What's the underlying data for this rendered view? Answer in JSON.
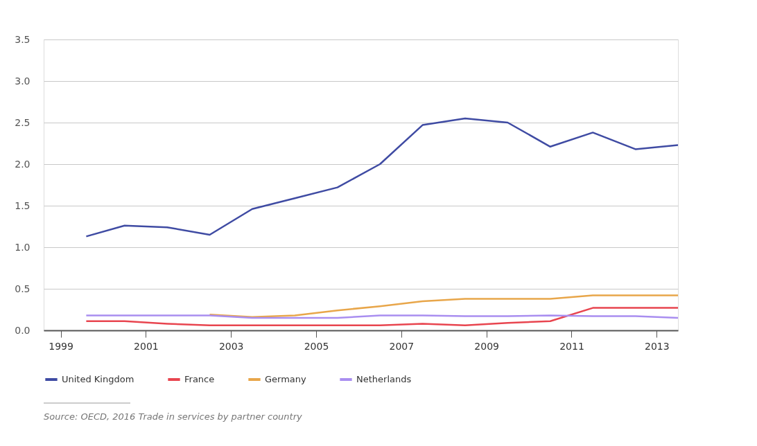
{
  "chart_data": {
    "type": "line",
    "x": [
      1999.6,
      2000.5,
      2001.5,
      2002.5,
      2003.5,
      2004.5,
      2005.5,
      2006.5,
      2007.5,
      2008.5,
      2009.5,
      2010.5,
      2011.5,
      2012.5,
      2013.5
    ],
    "series": [
      {
        "name": "United Kingdom",
        "color": "#3f4ba3",
        "values": [
          1.13,
          1.26,
          1.24,
          1.15,
          1.46,
          1.59,
          1.72,
          2.0,
          2.47,
          2.55,
          2.5,
          2.21,
          2.38,
          2.18,
          2.23
        ]
      },
      {
        "name": "France",
        "color": "#e8454f",
        "values": [
          0.11,
          0.11,
          0.08,
          0.06,
          0.06,
          0.06,
          0.06,
          0.06,
          0.08,
          0.06,
          0.09,
          0.11,
          0.27,
          0.27,
          0.27
        ]
      },
      {
        "name": "Germany",
        "color": "#e8a64a",
        "values": [
          null,
          null,
          null,
          0.19,
          0.16,
          0.18,
          0.24,
          0.29,
          0.35,
          0.38,
          0.38,
          0.38,
          0.42,
          0.42,
          0.42
        ]
      },
      {
        "name": "Netherlands",
        "color": "#a98ef0",
        "values": [
          0.18,
          0.18,
          0.18,
          0.18,
          0.15,
          0.15,
          0.15,
          0.18,
          0.18,
          0.17,
          0.17,
          0.18,
          0.17,
          0.17,
          0.15
        ]
      }
    ],
    "xlim": [
      1998.6,
      2013.5
    ],
    "xticks": [
      1999,
      2001,
      2003,
      2005,
      2007,
      2009,
      2011,
      2013
    ],
    "ylim": [
      0,
      3.5
    ],
    "yticks": [
      {
        "value": 0,
        "label": "0.0"
      },
      {
        "value": 0.5,
        "label": "0.5"
      },
      {
        "value": 1,
        "label": "1.0"
      },
      {
        "value": 1.5,
        "label": "1.5"
      },
      {
        "value": 2,
        "label": "2.0"
      },
      {
        "value": 2.5,
        "label": "2.5"
      },
      {
        "value": 3,
        "label": "3.0"
      },
      {
        "value": 3.5,
        "label": "3.5"
      }
    ],
    "grid": "y",
    "legend": "bottom left",
    "marker": "none",
    "line_style": "solid",
    "annotations": [
      "Source: OECD, 2016 Trade in services by partner country"
    ]
  }
}
